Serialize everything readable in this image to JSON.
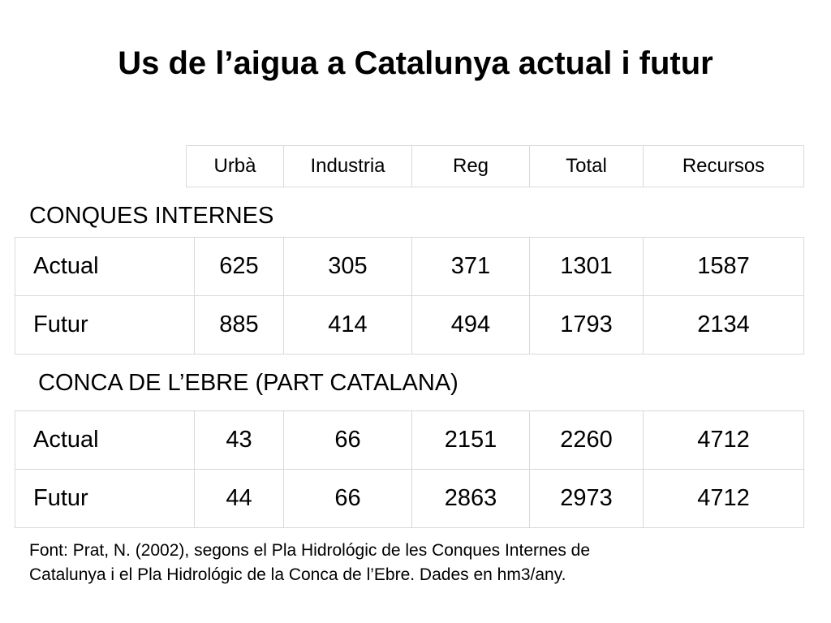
{
  "title": "Us de l’aigua a Catalunya actual i futur",
  "columns": [
    "Urbà",
    "Industria",
    "Reg",
    "Total",
    "Recursos"
  ],
  "sections": [
    {
      "heading": "CONQUES INTERNES",
      "rows": [
        {
          "label": "Actual",
          "values": [
            "625",
            "305",
            "371",
            "1301",
            "1587"
          ]
        },
        {
          "label": "Futur",
          "values": [
            "885",
            "414",
            "494",
            "1793",
            "2134"
          ]
        }
      ]
    },
    {
      "heading": "CONCA DE L’EBRE (PART CATALANA)",
      "rows": [
        {
          "label": "Actual",
          "values": [
            "43",
            "66",
            "2151",
            "2260",
            "4712"
          ]
        },
        {
          "label": "Futur",
          "values": [
            "44",
            "66",
            "2863",
            "2973",
            "4712"
          ]
        }
      ]
    }
  ],
  "source": {
    "line1": "Font: Prat, N. (2002), segons el Pla Hidrológic de les Conques Internes de",
    "line2": "Catalunya i el Pla Hidrológic de la Conca de l’Ebre. Dades en hm3/any."
  }
}
